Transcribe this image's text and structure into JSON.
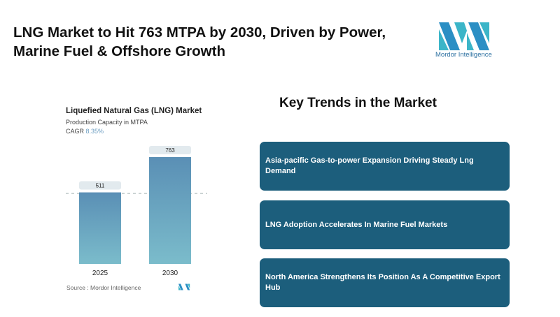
{
  "header": {
    "title": "LNG Market to Hit 763 MTPA by 2030, Driven by Power, Marine Fuel & Offshore Growth",
    "logo_text": "Mordor Intelligence"
  },
  "chart_data": {
    "type": "bar",
    "title": "Liquefied Natural Gas (LNG) Market",
    "subtitle": "Production Capacity in MTPA",
    "cagr_label": "CAGR",
    "cagr_value": "8.35%",
    "categories": [
      "2025",
      "2030"
    ],
    "values": [
      511,
      763
    ],
    "ylim": [
      0,
      763
    ],
    "source": "Source :  Mordor Intelligence"
  },
  "trends": {
    "title": "Key Trends in the Market",
    "items": [
      "Asia-pacific Gas-to-power Expansion Driving Steady Lng Demand",
      "LNG Adoption Accelerates In Marine Fuel Markets",
      "North America Strengthens Its Position As A Competitive Export Hub"
    ]
  },
  "colors": {
    "card": "#1c5e7c",
    "bar_top": "#5a8fb5",
    "bar_bottom": "#7bbccb"
  }
}
